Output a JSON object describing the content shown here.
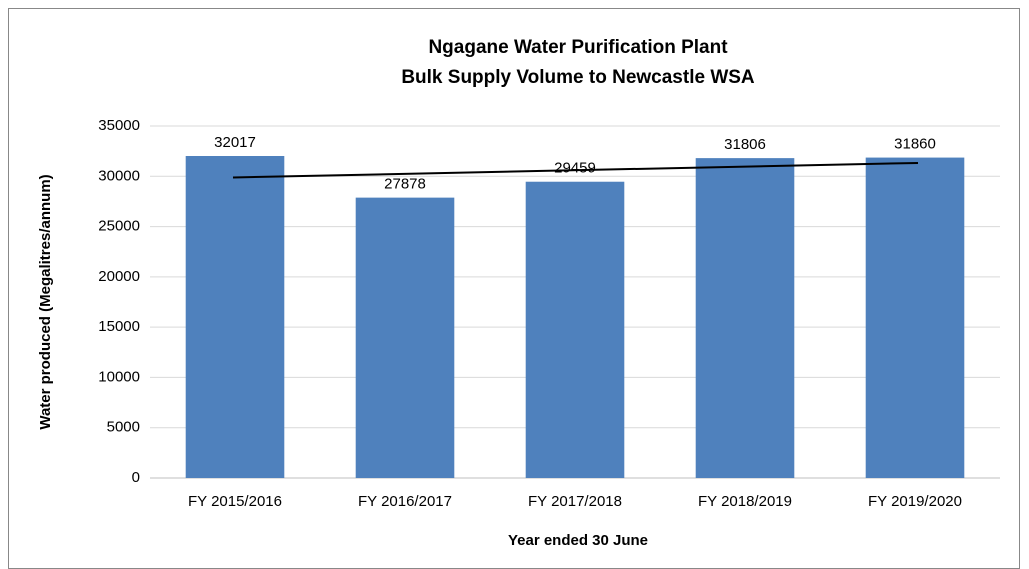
{
  "chart_data": {
    "type": "bar",
    "title": [
      "Ngagane Water Purification Plant",
      "Bulk Supply Volume to Newcastle WSA"
    ],
    "xlabel": "Year ended 30 June",
    "ylabel": "Water produced (Megalitres/annum)",
    "categories": [
      "FY 2015/2016",
      "FY 2016/2017",
      "FY 2017/2018",
      "FY 2018/2019",
      "FY 2019/2020"
    ],
    "values": [
      32017,
      27878,
      29459,
      31806,
      31860
    ],
    "color": "#4f81bd",
    "ylim": [
      0,
      35000
    ],
    "yticks": [
      0,
      5000,
      10000,
      15000,
      20000,
      25000,
      30000,
      35000
    ],
    "grid": true,
    "trendline": "linear"
  }
}
